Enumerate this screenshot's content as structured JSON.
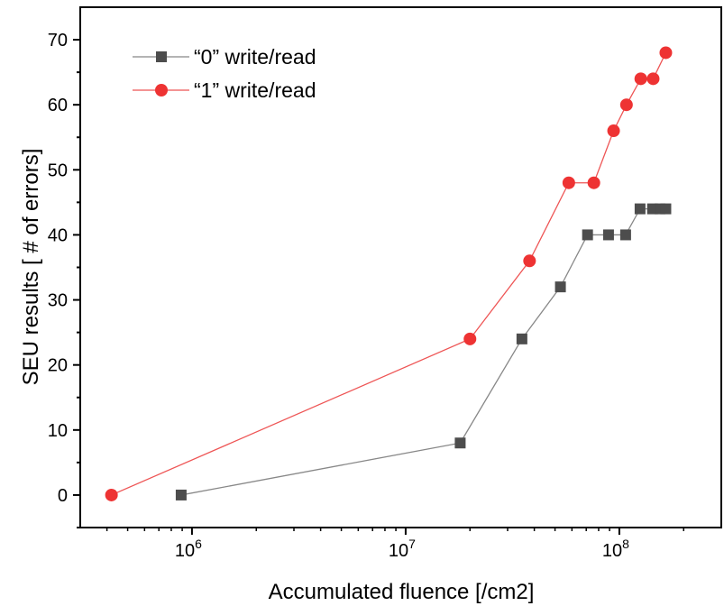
{
  "chart_data": {
    "type": "line",
    "xlabel": "Accumulated fluence [/cm2]",
    "ylabel": "SEU results [ # of errors]",
    "x_scale": "log",
    "xlim": [
      300000,
      300000000
    ],
    "ylim": [
      -5,
      75
    ],
    "x_major_ticks": [
      {
        "value": 1000000,
        "base": "10",
        "exp": "6"
      },
      {
        "value": 10000000,
        "base": "10",
        "exp": "7"
      },
      {
        "value": 100000000,
        "base": "10",
        "exp": "8"
      }
    ],
    "y_ticks": [
      0,
      10,
      20,
      30,
      40,
      50,
      60,
      70
    ],
    "grid": false,
    "legend_position": "top-left",
    "series": [
      {
        "name": "“0” write/read",
        "color": "#4d4d4d",
        "line_color": "#888888",
        "marker": "square",
        "x": [
          890000,
          18000000,
          35000000,
          53000000,
          71000000,
          89000000,
          107000000,
          125000000,
          143000000,
          155000000,
          165000000
        ],
        "y": [
          0,
          8,
          24,
          32,
          40,
          40,
          40,
          44,
          44,
          44,
          44
        ]
      },
      {
        "name": "“1” write/read",
        "color": "#ee3333",
        "line_color": "#ee5555",
        "marker": "circle",
        "x": [
          420000,
          20000000,
          38000000,
          58000000,
          76000000,
          94000000,
          108000000,
          126000000,
          144000000,
          165000000
        ],
        "y": [
          0,
          24,
          36,
          48,
          48,
          56,
          60,
          64,
          64,
          68
        ]
      }
    ]
  }
}
